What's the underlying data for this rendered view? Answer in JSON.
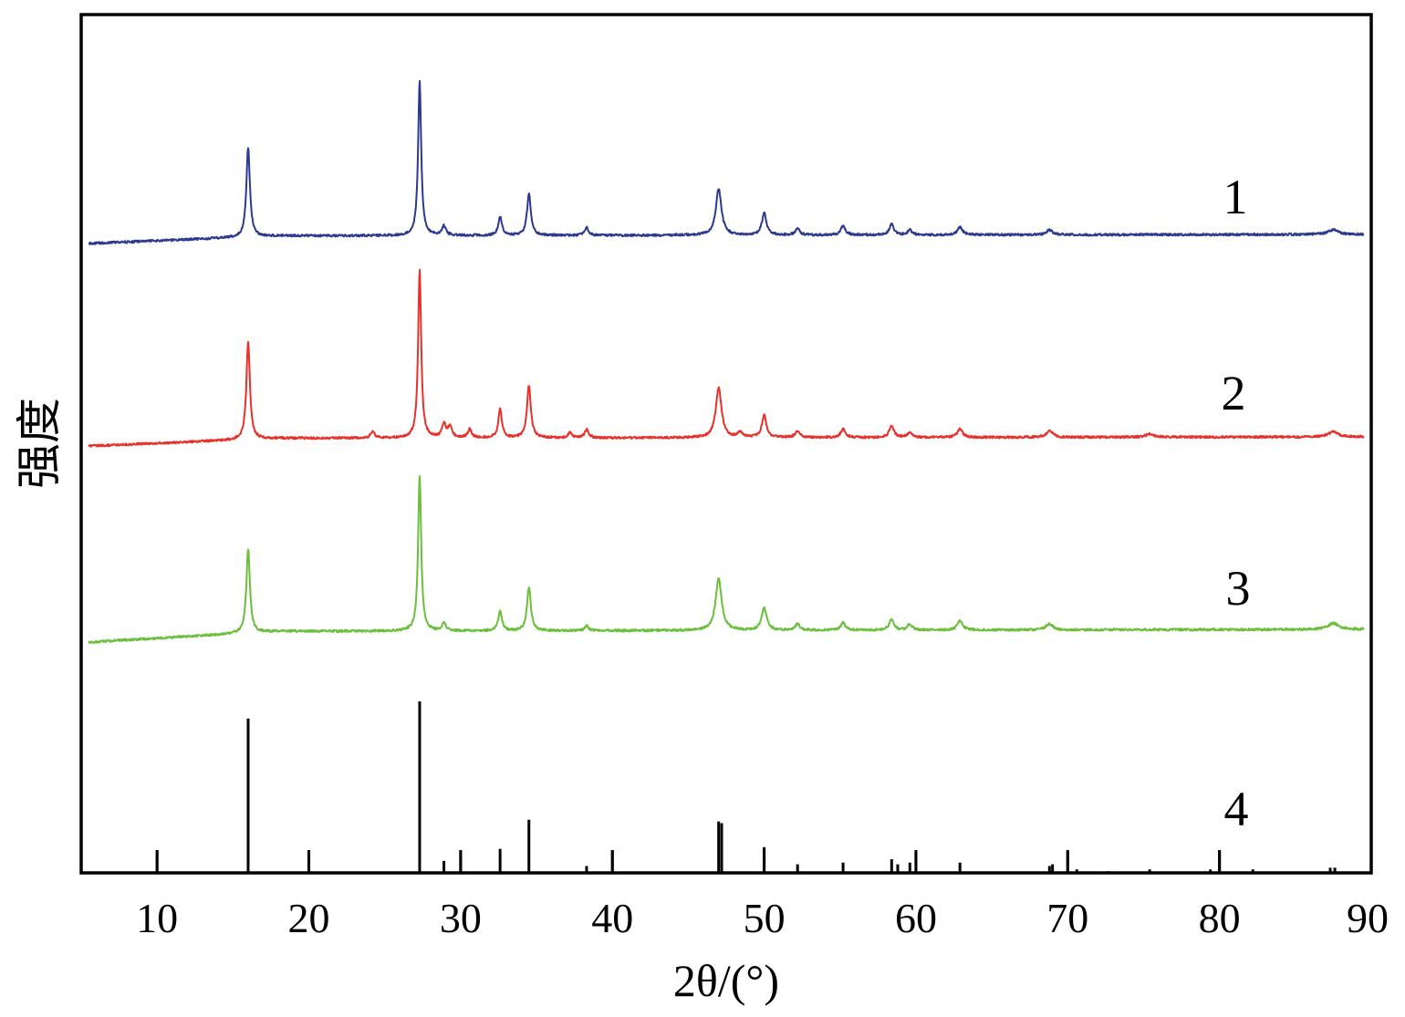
{
  "chart_data": {
    "type": "line",
    "title": "",
    "xlabel": "2θ/(°)",
    "ylabel": "强度",
    "xlim": [
      5,
      90
    ],
    "xticks": [
      10,
      20,
      30,
      40,
      50,
      60,
      70,
      80,
      90
    ],
    "legend": "none",
    "grid": false,
    "series": [
      {
        "name": "1",
        "color": "#2b3a8f",
        "baseline_start": 0.02,
        "baseline_end": 0.18,
        "peaks": [
          {
            "x": 16.0,
            "h": 0.58,
            "w": 0.14
          },
          {
            "x": 27.3,
            "h": 1.0,
            "w": 0.12
          },
          {
            "x": 28.9,
            "h": 0.06,
            "w": 0.15
          },
          {
            "x": 32.6,
            "h": 0.12,
            "w": 0.14
          },
          {
            "x": 34.5,
            "h": 0.27,
            "w": 0.15
          },
          {
            "x": 38.3,
            "h": 0.05,
            "w": 0.15
          },
          {
            "x": 47.0,
            "h": 0.3,
            "w": 0.22
          },
          {
            "x": 50.0,
            "h": 0.14,
            "w": 0.18
          },
          {
            "x": 52.2,
            "h": 0.04,
            "w": 0.18
          },
          {
            "x": 55.2,
            "h": 0.06,
            "w": 0.18
          },
          {
            "x": 58.4,
            "h": 0.07,
            "w": 0.18
          },
          {
            "x": 59.6,
            "h": 0.03,
            "w": 0.18
          },
          {
            "x": 62.9,
            "h": 0.05,
            "w": 0.2
          },
          {
            "x": 68.8,
            "h": 0.03,
            "w": 0.25
          },
          {
            "x": 87.5,
            "h": 0.03,
            "w": 0.4
          }
        ]
      },
      {
        "name": "2",
        "color": "#e8312a",
        "baseline_start": 0.02,
        "baseline_end": 0.18,
        "peaks": [
          {
            "x": 16.0,
            "h": 0.58,
            "w": 0.14
          },
          {
            "x": 24.2,
            "h": 0.04,
            "w": 0.15
          },
          {
            "x": 27.3,
            "h": 1.0,
            "w": 0.12
          },
          {
            "x": 28.9,
            "h": 0.08,
            "w": 0.15
          },
          {
            "x": 29.3,
            "h": 0.07,
            "w": 0.15
          },
          {
            "x": 30.6,
            "h": 0.05,
            "w": 0.15
          },
          {
            "x": 32.6,
            "h": 0.17,
            "w": 0.14
          },
          {
            "x": 34.5,
            "h": 0.31,
            "w": 0.15
          },
          {
            "x": 37.2,
            "h": 0.03,
            "w": 0.15
          },
          {
            "x": 38.3,
            "h": 0.05,
            "w": 0.15
          },
          {
            "x": 47.0,
            "h": 0.3,
            "w": 0.22
          },
          {
            "x": 48.4,
            "h": 0.03,
            "w": 0.18
          },
          {
            "x": 50.0,
            "h": 0.13,
            "w": 0.18
          },
          {
            "x": 52.2,
            "h": 0.04,
            "w": 0.18
          },
          {
            "x": 55.2,
            "h": 0.05,
            "w": 0.18
          },
          {
            "x": 58.4,
            "h": 0.07,
            "w": 0.18
          },
          {
            "x": 59.6,
            "h": 0.03,
            "w": 0.18
          },
          {
            "x": 62.9,
            "h": 0.05,
            "w": 0.2
          },
          {
            "x": 68.8,
            "h": 0.04,
            "w": 0.25
          },
          {
            "x": 75.4,
            "h": 0.02,
            "w": 0.3
          },
          {
            "x": 87.5,
            "h": 0.03,
            "w": 0.4
          }
        ]
      },
      {
        "name": "3",
        "color": "#6cbf3c",
        "baseline_start": 0.02,
        "baseline_end": 0.18,
        "peaks": [
          {
            "x": 16.0,
            "h": 0.54,
            "w": 0.14
          },
          {
            "x": 27.3,
            "h": 1.0,
            "w": 0.12
          },
          {
            "x": 28.9,
            "h": 0.05,
            "w": 0.15
          },
          {
            "x": 32.6,
            "h": 0.13,
            "w": 0.14
          },
          {
            "x": 34.5,
            "h": 0.28,
            "w": 0.15
          },
          {
            "x": 38.3,
            "h": 0.03,
            "w": 0.15
          },
          {
            "x": 47.0,
            "h": 0.33,
            "w": 0.24
          },
          {
            "x": 50.0,
            "h": 0.14,
            "w": 0.2
          },
          {
            "x": 52.2,
            "h": 0.04,
            "w": 0.18
          },
          {
            "x": 55.2,
            "h": 0.05,
            "w": 0.18
          },
          {
            "x": 58.4,
            "h": 0.07,
            "w": 0.18
          },
          {
            "x": 59.6,
            "h": 0.04,
            "w": 0.18
          },
          {
            "x": 62.9,
            "h": 0.06,
            "w": 0.2
          },
          {
            "x": 68.8,
            "h": 0.04,
            "w": 0.25
          },
          {
            "x": 87.5,
            "h": 0.04,
            "w": 0.4
          }
        ]
      },
      {
        "name": "4",
        "type": "stick",
        "color": "#000000",
        "sticks": [
          {
            "x": 10.0,
            "h": 0.13
          },
          {
            "x": 16.0,
            "h": 0.9
          },
          {
            "x": 20.0,
            "h": 0.13
          },
          {
            "x": 27.3,
            "h": 1.0
          },
          {
            "x": 28.9,
            "h": 0.07
          },
          {
            "x": 30.0,
            "h": 0.13
          },
          {
            "x": 32.6,
            "h": 0.14
          },
          {
            "x": 34.5,
            "h": 0.31
          },
          {
            "x": 38.3,
            "h": 0.04
          },
          {
            "x": 40.0,
            "h": 0.13
          },
          {
            "x": 47.0,
            "h": 0.3
          },
          {
            "x": 47.2,
            "h": 0.29
          },
          {
            "x": 50.0,
            "h": 0.15
          },
          {
            "x": 52.2,
            "h": 0.05
          },
          {
            "x": 55.2,
            "h": 0.06
          },
          {
            "x": 58.4,
            "h": 0.08
          },
          {
            "x": 58.8,
            "h": 0.05
          },
          {
            "x": 59.6,
            "h": 0.06
          },
          {
            "x": 60.0,
            "h": 0.13
          },
          {
            "x": 62.9,
            "h": 0.06
          },
          {
            "x": 68.8,
            "h": 0.04
          },
          {
            "x": 69.0,
            "h": 0.05
          },
          {
            "x": 70.0,
            "h": 0.13
          },
          {
            "x": 70.6,
            "h": 0.02
          },
          {
            "x": 72.7,
            "h": 0.01
          },
          {
            "x": 75.4,
            "h": 0.02
          },
          {
            "x": 79.4,
            "h": 0.02
          },
          {
            "x": 80.0,
            "h": 0.13
          },
          {
            "x": 82.2,
            "h": 0.02
          },
          {
            "x": 87.3,
            "h": 0.03
          },
          {
            "x": 87.6,
            "h": 0.03
          }
        ]
      }
    ]
  }
}
